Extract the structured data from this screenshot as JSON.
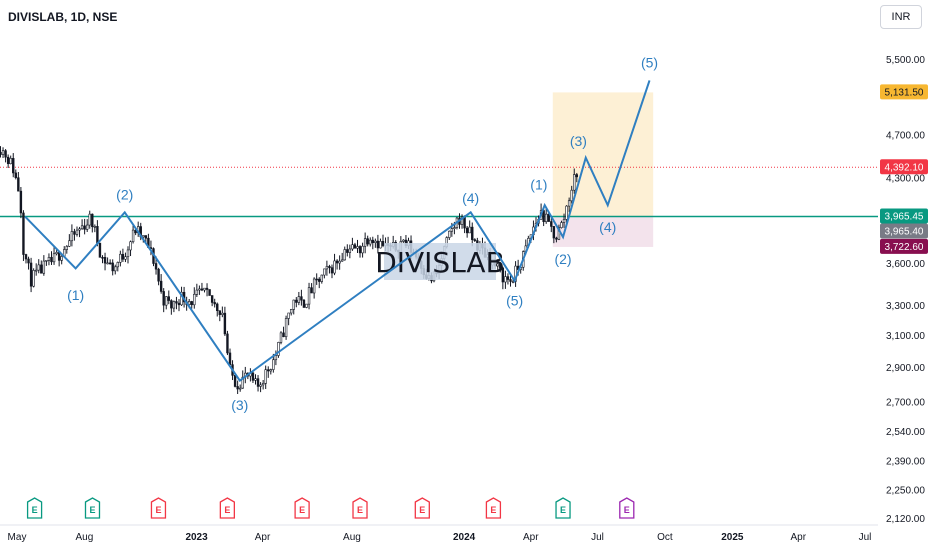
{
  "header": {
    "symbol": "DIVISLAB, 1D, NSE",
    "currency": "INR"
  },
  "watermark": "DIVISLAB",
  "colors": {
    "candle": "#131722",
    "wave": "#2f7fc1",
    "support": "#089981",
    "target_zone": "#fdf0d5",
    "stop_zone": "#f3e3ec",
    "dotted_line": "#f23645"
  },
  "chart_data": {
    "type": "candlestick",
    "symbol": "DIVISLAB",
    "interval": "1D",
    "exchange": "NSE",
    "currency": "INR",
    "x_ticks": [
      {
        "label": "May",
        "date": "2022-05-01"
      },
      {
        "label": "Aug",
        "date": "2022-08-01"
      },
      {
        "label": "2023",
        "date": "2023-01-01",
        "bold": true
      },
      {
        "label": "Apr",
        "date": "2023-04-01"
      },
      {
        "label": "Aug",
        "date": "2023-08-01"
      },
      {
        "label": "2024",
        "date": "2024-01-01",
        "bold": true
      },
      {
        "label": "Apr",
        "date": "2024-04-01"
      },
      {
        "label": "Jul",
        "date": "2024-07-01"
      },
      {
        "label": "Oct",
        "date": "2024-10-01"
      },
      {
        "label": "2025",
        "date": "2025-01-01",
        "bold": true
      },
      {
        "label": "Apr",
        "date": "2025-04-01"
      },
      {
        "label": "Jul",
        "date": "2025-07-01"
      }
    ],
    "y_ticks": [
      "5,500.00",
      "4,700.00",
      "4,300.00",
      "3,600.00",
      "3,300.00",
      "3,100.00",
      "2,900.00",
      "2,700.00",
      "2,540.00",
      "2,390.00",
      "2,250.00",
      "2,120.00"
    ],
    "y_scale": "log",
    "price_path": [
      {
        "date": "2022-04-05",
        "price": 4600
      },
      {
        "date": "2022-04-15",
        "price": 4520
      },
      {
        "date": "2022-04-25",
        "price": 4400
      },
      {
        "date": "2022-05-05",
        "price": 4150
      },
      {
        "date": "2022-05-10",
        "price": 3700
      },
      {
        "date": "2022-05-20",
        "price": 3480
      },
      {
        "date": "2022-06-05",
        "price": 3560
      },
      {
        "date": "2022-06-20",
        "price": 3620
      },
      {
        "date": "2022-07-05",
        "price": 3720
      },
      {
        "date": "2022-07-25",
        "price": 3860
      },
      {
        "date": "2022-08-10",
        "price": 3950
      },
      {
        "date": "2022-08-25",
        "price": 3640
      },
      {
        "date": "2022-09-10",
        "price": 3560
      },
      {
        "date": "2022-09-25",
        "price": 3680
      },
      {
        "date": "2022-10-10",
        "price": 3860
      },
      {
        "date": "2022-10-25",
        "price": 3750
      },
      {
        "date": "2022-11-05",
        "price": 3600
      },
      {
        "date": "2022-11-15",
        "price": 3350
      },
      {
        "date": "2022-11-28",
        "price": 3290
      },
      {
        "date": "2022-12-10",
        "price": 3360
      },
      {
        "date": "2022-12-25",
        "price": 3330
      },
      {
        "date": "2023-01-10",
        "price": 3390
      },
      {
        "date": "2023-01-25",
        "price": 3300
      },
      {
        "date": "2023-02-05",
        "price": 3260
      },
      {
        "date": "2023-02-15",
        "price": 2880
      },
      {
        "date": "2023-02-25",
        "price": 2800
      },
      {
        "date": "2023-03-10",
        "price": 2850
      },
      {
        "date": "2023-03-25",
        "price": 2780
      },
      {
        "date": "2023-04-10",
        "price": 2900
      },
      {
        "date": "2023-04-20",
        "price": 2980
      },
      {
        "date": "2023-05-01",
        "price": 3150
      },
      {
        "date": "2023-05-15",
        "price": 3350
      },
      {
        "date": "2023-05-25",
        "price": 3300
      },
      {
        "date": "2023-06-10",
        "price": 3430
      },
      {
        "date": "2023-06-25",
        "price": 3520
      },
      {
        "date": "2023-07-10",
        "price": 3600
      },
      {
        "date": "2023-07-25",
        "price": 3720
      },
      {
        "date": "2023-08-10",
        "price": 3700
      },
      {
        "date": "2023-08-25",
        "price": 3820
      },
      {
        "date": "2023-09-10",
        "price": 3740
      },
      {
        "date": "2023-09-25",
        "price": 3700
      },
      {
        "date": "2023-10-10",
        "price": 3770
      },
      {
        "date": "2023-10-25",
        "price": 3680
      },
      {
        "date": "2023-11-05",
        "price": 3580
      },
      {
        "date": "2023-11-15",
        "price": 3470
      },
      {
        "date": "2023-11-25",
        "price": 3520
      },
      {
        "date": "2023-12-05",
        "price": 3700
      },
      {
        "date": "2023-12-15",
        "price": 3850
      },
      {
        "date": "2023-12-25",
        "price": 3960
      },
      {
        "date": "2024-01-05",
        "price": 3860
      },
      {
        "date": "2024-01-15",
        "price": 3760
      },
      {
        "date": "2024-01-25",
        "price": 3700
      },
      {
        "date": "2024-02-05",
        "price": 3640
      },
      {
        "date": "2024-02-15",
        "price": 3560
      },
      {
        "date": "2024-02-25",
        "price": 3490
      },
      {
        "date": "2024-03-05",
        "price": 3470
      },
      {
        "date": "2024-03-15",
        "price": 3560
      },
      {
        "date": "2024-03-25",
        "price": 3700
      },
      {
        "date": "2024-04-05",
        "price": 3880
      },
      {
        "date": "2024-04-15",
        "price": 4000
      },
      {
        "date": "2024-04-25",
        "price": 3900
      },
      {
        "date": "2024-05-05",
        "price": 3800
      },
      {
        "date": "2024-05-15",
        "price": 3920
      },
      {
        "date": "2024-05-25",
        "price": 4180
      },
      {
        "date": "2024-06-05",
        "price": 4390
      }
    ],
    "levels": [
      {
        "label": "5,131.50",
        "price": 5131.5,
        "bg": "#f7b731",
        "fg": "#131722"
      },
      {
        "label": "4,392.10",
        "price": 4392.1,
        "bg": "#f23645",
        "fg": "#ffffff"
      },
      {
        "label": "3,965.45",
        "price": 3965.45,
        "bg": "#089981",
        "fg": "#ffffff"
      },
      {
        "label": "3,965.40",
        "price": 3965.4,
        "bg": "#787b86",
        "fg": "#ffffff"
      },
      {
        "label": "3,722.60",
        "price": 3722.6,
        "bg": "#880e4f",
        "fg": "#ffffff"
      }
    ],
    "support_line": 3965.45,
    "entry_line": 4392.1,
    "projection_box": {
      "start": "2024-05-01",
      "end": "2024-09-15",
      "top": 5131.5,
      "mid": 3965.45,
      "bottom": 3722.6
    },
    "wave_paths": [
      [
        {
          "date": "2022-05-12",
          "price": 3965
        },
        {
          "date": "2022-07-20",
          "price": 3560
        },
        {
          "date": "2022-09-25",
          "price": 4000
        },
        {
          "date": "2023-03-01",
          "price": 2820
        },
        {
          "date": "2023-05-10",
          "price": 3050
        },
        {
          "date": "2024-01-10",
          "price": 4000
        },
        {
          "date": "2024-03-10",
          "price": 3470
        },
        {
          "date": "2024-04-20",
          "price": 4060
        },
        {
          "date": "2024-05-15",
          "price": 3800
        },
        {
          "date": "2024-06-15",
          "price": 4480
        },
        {
          "date": "2024-07-15",
          "price": 4060
        },
        {
          "date": "2024-09-10",
          "price": 5260
        }
      ]
    ],
    "wave_labels": [
      {
        "text": "(1)",
        "date": "2022-07-20",
        "price": 3370
      },
      {
        "text": "(2)",
        "date": "2022-09-25",
        "price": 4150
      },
      {
        "text": "(3)",
        "date": "2023-03-01",
        "price": 2680
      },
      {
        "text": "(4)",
        "date": "2024-01-10",
        "price": 4120
      },
      {
        "text": "(5)",
        "date": "2024-03-10",
        "price": 3330
      },
      {
        "text": "(1)",
        "date": "2024-04-12",
        "price": 4240
      },
      {
        "text": "(2)",
        "date": "2024-05-15",
        "price": 3630
      },
      {
        "text": "(3)",
        "date": "2024-06-05",
        "price": 4640
      },
      {
        "text": "(4)",
        "date": "2024-07-15",
        "price": 3880
      },
      {
        "text": "(5)",
        "date": "2024-09-10",
        "price": 5460
      }
    ],
    "earnings_markers": [
      {
        "date": "2022-05-25",
        "color": "#089981"
      },
      {
        "date": "2022-08-12",
        "color": "#089981"
      },
      {
        "date": "2022-11-10",
        "color": "#f23645"
      },
      {
        "date": "2023-02-12",
        "color": "#f23645"
      },
      {
        "date": "2023-05-25",
        "color": "#f23645"
      },
      {
        "date": "2023-08-12",
        "color": "#f23645"
      },
      {
        "date": "2023-11-05",
        "color": "#f23645"
      },
      {
        "date": "2024-02-10",
        "color": "#f23645"
      },
      {
        "date": "2024-05-15",
        "color": "#089981"
      },
      {
        "date": "2024-08-10",
        "color": "#9c27b0"
      }
    ]
  }
}
